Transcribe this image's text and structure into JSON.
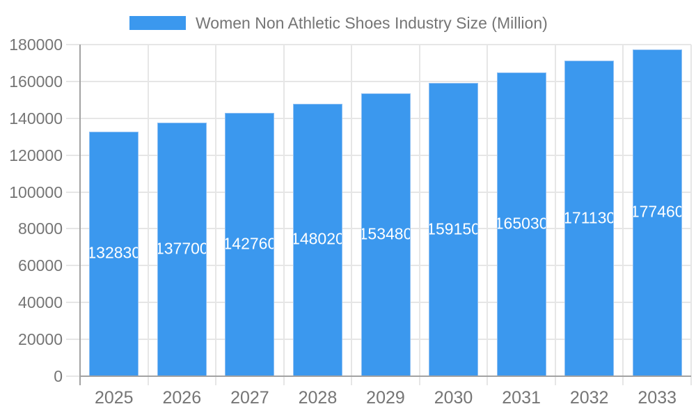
{
  "chart_data": {
    "type": "bar",
    "title": "Women Non Athletic Shoes Industry Size (Million)",
    "legend_position": "top",
    "categories": [
      "2025",
      "2026",
      "2027",
      "2028",
      "2029",
      "2030",
      "2031",
      "2032",
      "2033"
    ],
    "values": [
      132830,
      137700,
      142760,
      148020,
      153480,
      159150,
      165030,
      171130,
      177460
    ],
    "value_labels": [
      "132830",
      "137700",
      "142760",
      "148020",
      "153480",
      "159150",
      "165030",
      "171130",
      "177460"
    ],
    "xlabel": "",
    "ylabel": "",
    "ylim": [
      0,
      180000
    ],
    "ytick_step": 20000,
    "yticks": [
      "0",
      "20000",
      "40000",
      "60000",
      "80000",
      "100000",
      "120000",
      "140000",
      "160000",
      "180000"
    ],
    "grid": "on",
    "colors": {
      "bar_fill": "#3B98EE",
      "bar_stroke": "#8FC0F3",
      "value_label_text": "#ffffff",
      "axis_text": "#757575",
      "gridline": "#e6e6e6",
      "axis_line": "#a2a2a2",
      "background": "#ffffff"
    }
  }
}
